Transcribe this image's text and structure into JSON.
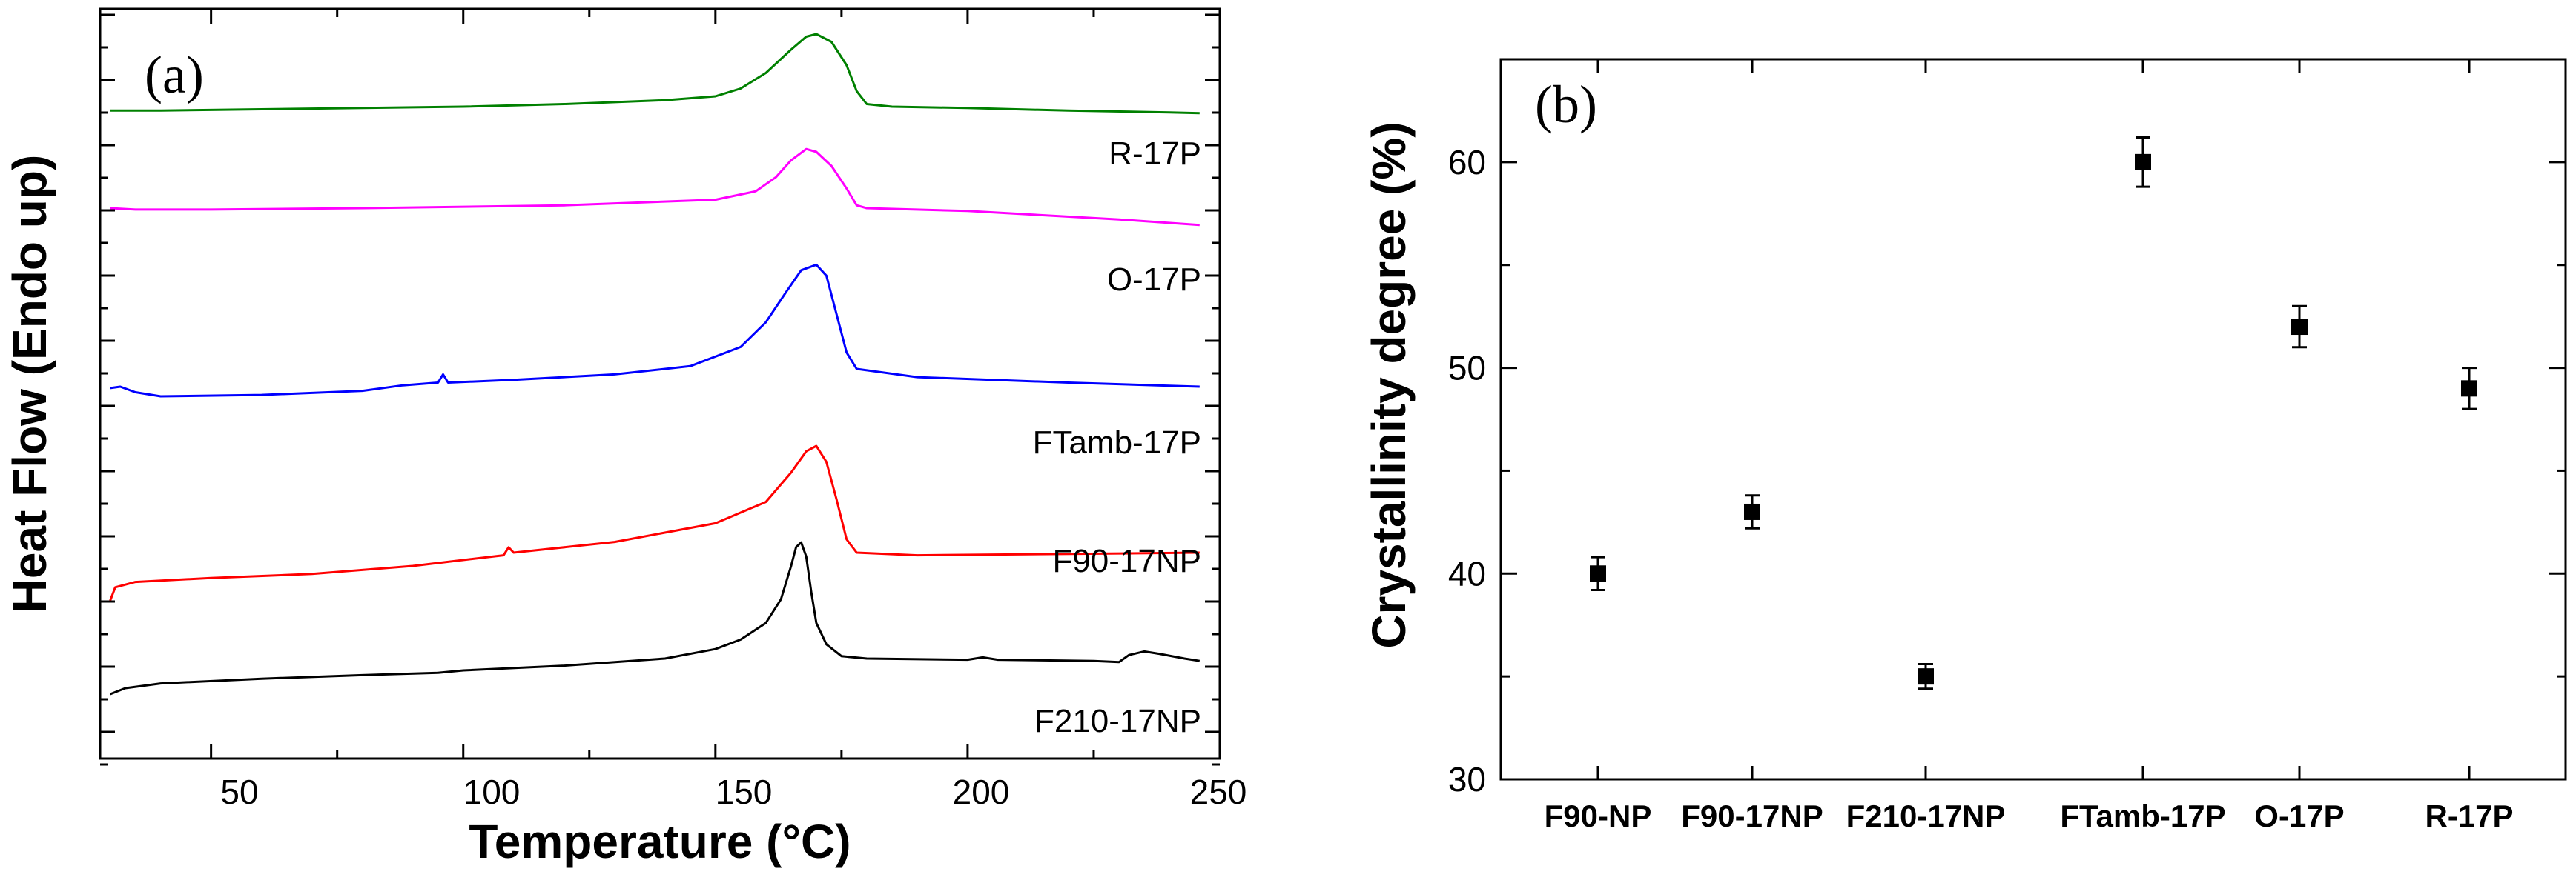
{
  "chart_data": [
    {
      "panel": "(a)",
      "type": "line",
      "xlabel": "Temperature (°C)",
      "ylabel": "Heat Flow (Endo up)",
      "xlim": [
        28,
        250
      ],
      "x_ticks": [
        "50",
        "100",
        "150",
        "200",
        "250"
      ],
      "y_tick_labels": false,
      "series": [
        {
          "name": "R-17P",
          "color": "#008000",
          "points": [
            [
              30,
              0.45
            ],
            [
              40,
              0.45
            ],
            [
              60,
              0.5
            ],
            [
              80,
              0.55
            ],
            [
              100,
              0.6
            ],
            [
              120,
              0.7
            ],
            [
              140,
              0.85
            ],
            [
              150,
              1.0
            ],
            [
              155,
              1.3
            ],
            [
              160,
              1.9
            ],
            [
              165,
              2.8
            ],
            [
              168,
              3.3
            ],
            [
              170,
              3.4
            ],
            [
              173,
              3.1
            ],
            [
              176,
              2.2
            ],
            [
              178,
              1.2
            ],
            [
              180,
              0.7
            ],
            [
              185,
              0.6
            ],
            [
              200,
              0.55
            ],
            [
              220,
              0.45
            ],
            [
              240,
              0.38
            ],
            [
              246,
              0.35
            ]
          ]
        },
        {
          "name": "O-17P",
          "color": "#ff00ff",
          "points": [
            [
              30,
              0.5
            ],
            [
              35,
              0.45
            ],
            [
              50,
              0.45
            ],
            [
              80,
              0.5
            ],
            [
              120,
              0.6
            ],
            [
              150,
              0.8
            ],
            [
              158,
              1.1
            ],
            [
              162,
              1.6
            ],
            [
              165,
              2.2
            ],
            [
              168,
              2.6
            ],
            [
              170,
              2.5
            ],
            [
              173,
              2.0
            ],
            [
              176,
              1.2
            ],
            [
              178,
              0.6
            ],
            [
              180,
              0.5
            ],
            [
              200,
              0.4
            ],
            [
              230,
              0.1
            ],
            [
              246,
              -0.1
            ]
          ]
        },
        {
          "name": "FTamb-17P",
          "color": "#0000ff",
          "points": [
            [
              30,
              0.3
            ],
            [
              32,
              0.35
            ],
            [
              35,
              0.15
            ],
            [
              40,
              0.0
            ],
            [
              60,
              0.05
            ],
            [
              80,
              0.2
            ],
            [
              88,
              0.4
            ],
            [
              95,
              0.5
            ],
            [
              96,
              0.8
            ],
            [
              97,
              0.5
            ],
            [
              110,
              0.6
            ],
            [
              130,
              0.8
            ],
            [
              145,
              1.1
            ],
            [
              155,
              1.8
            ],
            [
              160,
              2.7
            ],
            [
              164,
              3.8
            ],
            [
              167,
              4.6
            ],
            [
              170,
              4.8
            ],
            [
              172,
              4.4
            ],
            [
              174,
              3.0
            ],
            [
              176,
              1.6
            ],
            [
              178,
              1.0
            ],
            [
              190,
              0.7
            ],
            [
              220,
              0.5
            ],
            [
              246,
              0.35
            ]
          ]
        },
        {
          "name": "F90-17NP",
          "color": "#ff0000",
          "points": [
            [
              30,
              -0.3
            ],
            [
              31,
              0.2
            ],
            [
              35,
              0.4
            ],
            [
              50,
              0.55
            ],
            [
              70,
              0.7
            ],
            [
              90,
              1.0
            ],
            [
              108,
              1.4
            ],
            [
              109,
              1.7
            ],
            [
              110,
              1.5
            ],
            [
              130,
              1.9
            ],
            [
              150,
              2.6
            ],
            [
              160,
              3.4
            ],
            [
              165,
              4.5
            ],
            [
              168,
              5.3
            ],
            [
              170,
              5.5
            ],
            [
              172,
              4.9
            ],
            [
              174,
              3.5
            ],
            [
              176,
              2.0
            ],
            [
              178,
              1.5
            ],
            [
              190,
              1.4
            ],
            [
              220,
              1.45
            ],
            [
              246,
              1.5
            ]
          ]
        },
        {
          "name": "F210-17NP",
          "color": "#000000",
          "points": [
            [
              30,
              0.0
            ],
            [
              33,
              0.25
            ],
            [
              40,
              0.45
            ],
            [
              60,
              0.65
            ],
            [
              80,
              0.8
            ],
            [
              95,
              0.9
            ],
            [
              100,
              1.0
            ],
            [
              120,
              1.2
            ],
            [
              140,
              1.5
            ],
            [
              150,
              1.9
            ],
            [
              155,
              2.3
            ],
            [
              160,
              3.0
            ],
            [
              163,
              4.0
            ],
            [
              165,
              5.4
            ],
            [
              166,
              6.2
            ],
            [
              167,
              6.4
            ],
            [
              168,
              5.8
            ],
            [
              169,
              4.3
            ],
            [
              170,
              3.0
            ],
            [
              172,
              2.1
            ],
            [
              175,
              1.6
            ],
            [
              180,
              1.5
            ],
            [
              200,
              1.45
            ],
            [
              203,
              1.55
            ],
            [
              206,
              1.45
            ],
            [
              225,
              1.4
            ],
            [
              230,
              1.35
            ],
            [
              232,
              1.65
            ],
            [
              235,
              1.8
            ],
            [
              238,
              1.7
            ],
            [
              243,
              1.5
            ],
            [
              246,
              1.4
            ]
          ]
        }
      ]
    },
    {
      "panel": "(b)",
      "type": "scatter",
      "xlabel": "",
      "ylabel": "Crystallinity degree (%)",
      "ylim": [
        30,
        65
      ],
      "y_ticks": [
        30,
        40,
        50,
        60
      ],
      "categories": [
        "F90-NP",
        "F90-17NP",
        "F210-17NP",
        "FTamb-17P",
        "O-17P",
        "R-17P"
      ],
      "values": [
        40,
        43,
        35,
        60,
        52,
        49
      ],
      "errors": [
        0.8,
        0.8,
        0.6,
        1.2,
        1.0,
        1.0
      ]
    }
  ]
}
